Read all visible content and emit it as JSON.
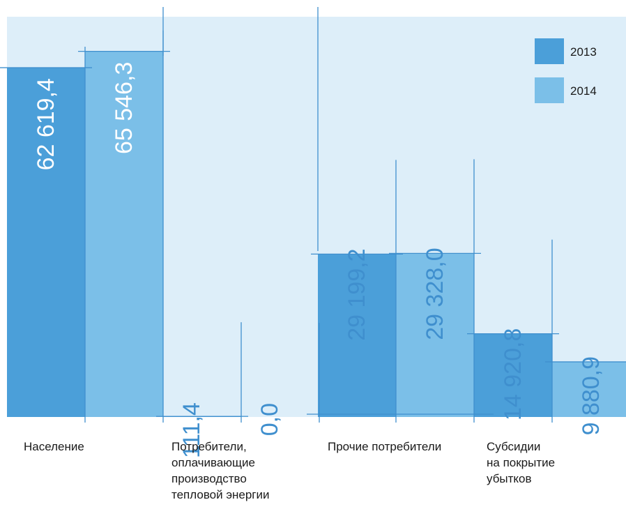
{
  "colors": {
    "background": "#ddeef9",
    "series_2013": "#4b9fd9",
    "series_2014": "#7bbfe8",
    "line": "#3f8fce",
    "label_on_bar": "#ffffff",
    "label_off_bar": "#3f8fce"
  },
  "chart_data": {
    "type": "bar",
    "categories": [
      "Население",
      "Потребители, оплачивающие производство тепловой энергии",
      "Прочие потребители",
      "Субсидии на покрытие убытков"
    ],
    "category_label_lines": [
      [
        "Население"
      ],
      [
        "Потребители,",
        "оплачивающие",
        "производство",
        "тепловой энергии"
      ],
      [
        "Прочие потребители"
      ],
      [
        "Субсидии",
        "на покрытие",
        "убытков"
      ]
    ],
    "series": [
      {
        "name": "2013",
        "values": [
          62619.4,
          111.4,
          29199.2,
          14920.8
        ],
        "labels": [
          "62 619,4",
          "111,4",
          "29 199,2",
          "14 920,8"
        ]
      },
      {
        "name": "2014",
        "values": [
          65546.3,
          0.0,
          29328.0,
          9880.9
        ],
        "labels": [
          "65 546,3",
          "0,0",
          "29 328,0",
          "9 880,9"
        ]
      }
    ],
    "legend": [
      "2013",
      "2014"
    ],
    "legend_position": "top-right",
    "ylim": [
      0,
      70000
    ],
    "grid": false,
    "title": "",
    "xlabel": "",
    "ylabel": ""
  }
}
